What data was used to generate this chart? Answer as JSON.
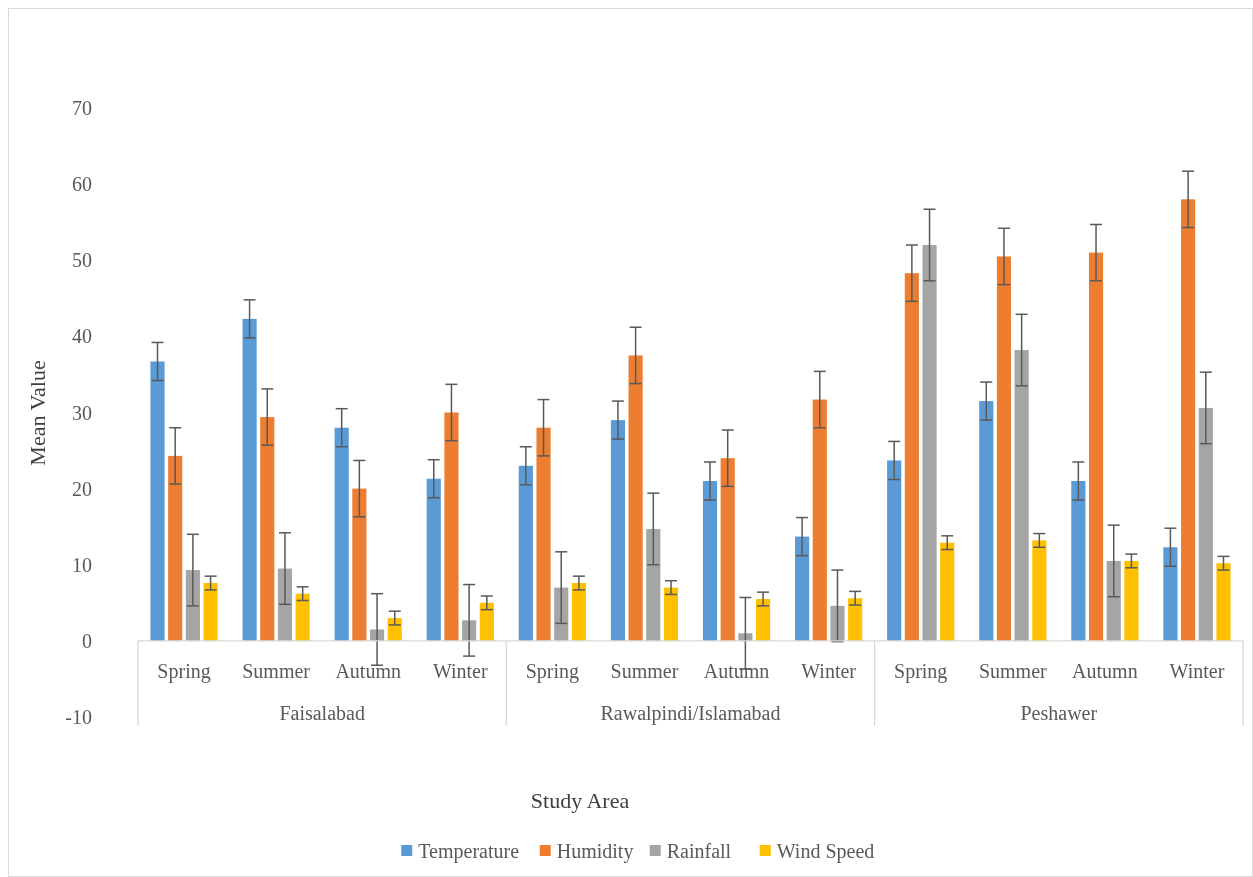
{
  "chart_data": {
    "type": "bar",
    "xlabel": "Study Area",
    "ylabel": "Mean Value",
    "categories": [
      "Spring",
      "Summer",
      "Autumn",
      "Winter",
      "Spring",
      "Summer",
      "Autumn",
      "Winter",
      "Spring",
      "Summer",
      "Autumn",
      "Winter"
    ],
    "annotations": [
      "Faisalabad",
      "Rawalpindi/Islamabad",
      "Peshawer"
    ],
    "series": [
      {
        "name": "Temperature",
        "color": "#5b9bd5",
        "values": [
          36.7,
          42.3,
          28,
          21.3,
          23,
          29,
          21,
          13.7,
          23.7,
          31.5,
          21,
          12.3
        ],
        "errors": [
          2.5,
          2.5,
          2.5,
          2.5,
          2.5,
          2.5,
          2.5,
          2.5,
          2.5,
          2.5,
          2.5,
          2.5
        ]
      },
      {
        "name": "Humidity",
        "color": "#ed7d31",
        "values": [
          24.3,
          29.4,
          20,
          30,
          28,
          37.5,
          24,
          31.7,
          48.3,
          50.5,
          51,
          58
        ],
        "errors": [
          3.7,
          3.7,
          3.7,
          3.7,
          3.7,
          3.7,
          3.7,
          3.7,
          3.7,
          3.7,
          3.7,
          3.7
        ]
      },
      {
        "name": "Rainfall",
        "color": "#a5a5a5",
        "values": [
          9.3,
          9.5,
          1.5,
          2.7,
          7,
          14.7,
          1,
          4.6,
          52,
          38.2,
          10.5,
          30.6
        ],
        "errors": [
          4.7,
          4.7,
          4.7,
          4.7,
          4.7,
          4.7,
          4.7,
          4.7,
          4.7,
          4.7,
          4.7,
          4.7
        ]
      },
      {
        "name": "Wind Speed",
        "color": "#ffc000",
        "values": [
          7.6,
          6.2,
          3,
          5,
          7.6,
          7,
          5.5,
          5.6,
          12.9,
          13.2,
          10.5,
          10.2
        ],
        "errors": [
          0.9,
          0.9,
          0.9,
          0.9,
          0.9,
          0.9,
          0.9,
          0.9,
          0.9,
          0.9,
          0.9,
          0.9
        ]
      }
    ],
    "ylim": [
      -10,
      70
    ],
    "yticks": [
      -10,
      0,
      10,
      20,
      30,
      40,
      50,
      60,
      70
    ],
    "grid": false,
    "legend": "bottom"
  }
}
